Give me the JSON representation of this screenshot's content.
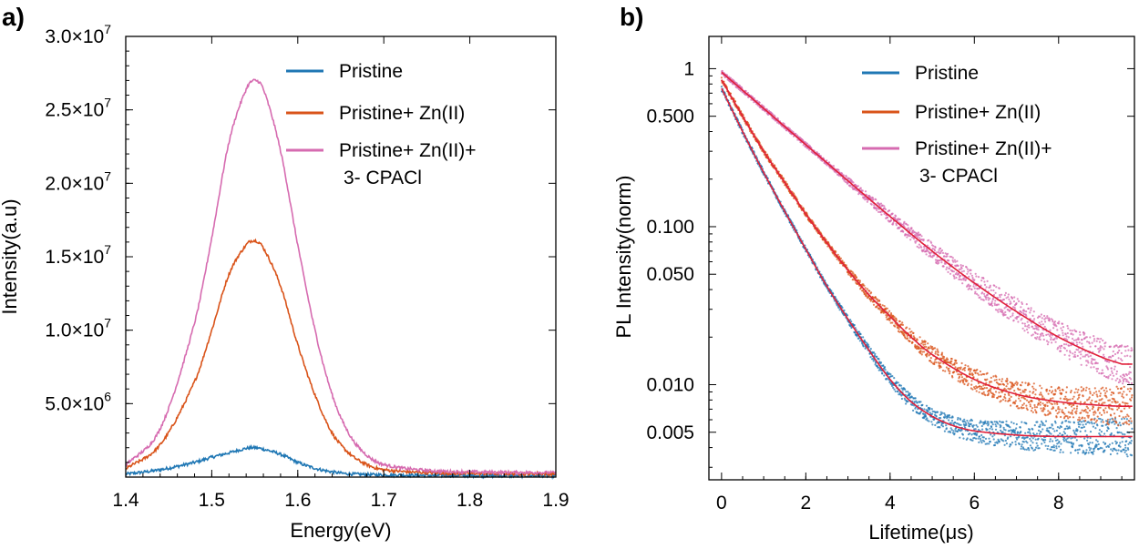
{
  "chart_data": [
    {
      "panel": "a)",
      "type": "line",
      "xlabel": "Energy(eV)",
      "ylabel": "Intensity(a.u)",
      "xlim": [
        1.4,
        1.9
      ],
      "ylim": [
        0,
        30000000.0
      ],
      "xticks": [
        1.4,
        1.5,
        1.6,
        1.7,
        1.8,
        1.9
      ],
      "xtick_labels": [
        "1.4",
        "1.5",
        "1.6",
        "1.7",
        "1.8",
        "1.9"
      ],
      "yticks": [
        5000000.0,
        10000000.0,
        15000000.0,
        20000000.0,
        25000000.0,
        30000000.0
      ],
      "ytick_labels": [
        {
          "mantissa": "5.0×10",
          "exp": "6"
        },
        {
          "mantissa": "1.0×10",
          "exp": "7"
        },
        {
          "mantissa": "1.5×10",
          "exp": "7"
        },
        {
          "mantissa": "2.0×10",
          "exp": "7"
        },
        {
          "mantissa": "2.5×10",
          "exp": "7"
        },
        {
          "mantissa": "3.0×10",
          "exp": "7"
        }
      ],
      "legend_position": "top-right",
      "series": [
        {
          "name": "Pristine",
          "color": "#1f77b4",
          "x": [
            1.4,
            1.44,
            1.48,
            1.5,
            1.52,
            1.54,
            1.55,
            1.56,
            1.58,
            1.6,
            1.62,
            1.64,
            1.66,
            1.7,
            1.8,
            1.9
          ],
          "y": [
            200000.0,
            500000.0,
            1000000.0,
            1350000.0,
            1650000.0,
            1950000.0,
            2000000.0,
            1900000.0,
            1550000.0,
            1000000.0,
            600000.0,
            350000.0,
            220000.0,
            150000.0,
            100000.0,
            100000.0
          ]
        },
        {
          "name": "Pristine+ Zn(II)",
          "color": "#d95319",
          "x": [
            1.4,
            1.44,
            1.48,
            1.5,
            1.52,
            1.54,
            1.55,
            1.56,
            1.58,
            1.6,
            1.62,
            1.64,
            1.66,
            1.68,
            1.7,
            1.75,
            1.8,
            1.9
          ],
          "y": [
            550000.0,
            2200000.0,
            6500000.0,
            10000000.0,
            13800000.0,
            15800000.0,
            16100000.0,
            15600000.0,
            13000000.0,
            9000000.0,
            5600000.0,
            3000000.0,
            1600000.0,
            850000.0,
            500000.0,
            300000.0,
            250000.0,
            220000.0
          ]
        },
        {
          "name": "Pristine+ Zn(II)+ 3- CPACl",
          "color": "#d66bb0",
          "x": [
            1.4,
            1.44,
            1.48,
            1.5,
            1.52,
            1.54,
            1.55,
            1.56,
            1.58,
            1.6,
            1.62,
            1.64,
            1.66,
            1.68,
            1.7,
            1.75,
            1.8,
            1.9
          ],
          "y": [
            800000.0,
            3300000.0,
            10500000.0,
            16300000.0,
            22800000.0,
            26400000.0,
            27000000.0,
            26400000.0,
            22200000.0,
            15800000.0,
            10000000.0,
            5600000.0,
            2900000.0,
            1500000.0,
            850000.0,
            450000.0,
            350000.0,
            300000.0
          ]
        }
      ]
    },
    {
      "panel": "b)",
      "type": "scatter",
      "xlabel": "Lifetime(μs)",
      "ylabel": "PL Intensity(norm)",
      "yscale": "log",
      "xlim": [
        -0.3,
        9.8
      ],
      "ylim": [
        0.0025,
        1.6
      ],
      "xticks": [
        0,
        2,
        4,
        6,
        8
      ],
      "xtick_labels": [
        "0",
        "2",
        "4",
        "6",
        "8"
      ],
      "yticks": [
        0.005,
        0.01,
        0.05,
        0.1,
        0.5,
        1
      ],
      "ytick_labels": [
        "0.005",
        "0.010",
        "0.050",
        "0.100",
        "0.500",
        "1"
      ],
      "legend_position": "top-right",
      "fit_color": "#e0203a",
      "series": [
        {
          "name": "Pristine",
          "color": "#1f77b4",
          "x": [
            0,
            0.5,
            1,
            1.5,
            2,
            2.5,
            3,
            3.5,
            4,
            4.5,
            5,
            5.5,
            6,
            7,
            8,
            9.5
          ],
          "y": [
            0.75,
            0.4,
            0.22,
            0.125,
            0.072,
            0.042,
            0.026,
            0.0165,
            0.0108,
            0.0078,
            0.0063,
            0.0055,
            0.0051,
            0.0048,
            0.0047,
            0.0047
          ]
        },
        {
          "name": "Pristine+ Zn(II)",
          "color": "#d95319",
          "x": [
            0,
            0.5,
            1,
            1.5,
            2,
            2.5,
            3,
            3.5,
            4,
            4.5,
            5,
            6,
            7,
            8,
            9,
            9.5
          ],
          "y": [
            0.85,
            0.5,
            0.3,
            0.19,
            0.12,
            0.079,
            0.053,
            0.037,
            0.027,
            0.02,
            0.0155,
            0.0108,
            0.0087,
            0.0078,
            0.0074,
            0.0073
          ]
        },
        {
          "name": "Pristine+ Zn(II)+ 3- CPACl",
          "color": "#d66bb0",
          "x": [
            0,
            0.5,
            1,
            1.5,
            2,
            3,
            4,
            5,
            6,
            7,
            8,
            9,
            9.5
          ],
          "y": [
            0.95,
            0.73,
            0.56,
            0.43,
            0.33,
            0.195,
            0.116,
            0.07,
            0.044,
            0.029,
            0.02,
            0.015,
            0.0135
          ]
        }
      ]
    }
  ]
}
